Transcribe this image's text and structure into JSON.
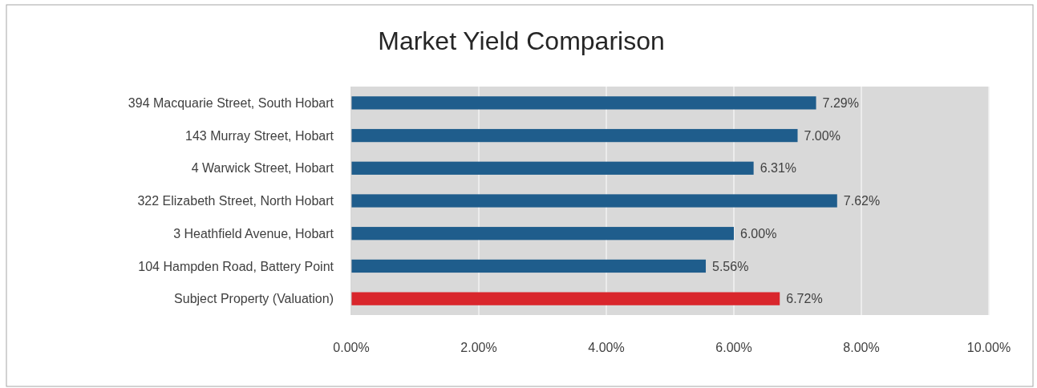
{
  "chart_data": {
    "type": "bar",
    "orientation": "horizontal",
    "title": "Market Yield Comparison",
    "categories": [
      "394 Macquarie Street, South Hobart",
      "143 Murray Street, Hobart",
      "4 Warwick Street, Hobart",
      "322 Elizabeth Street, North Hobart",
      "3 Heathfield Avenue, Hobart",
      "104 Hampden Road, Battery Point",
      "Subject Property (Valuation)"
    ],
    "values": [
      7.29,
      7.0,
      6.31,
      7.62,
      6.0,
      5.56,
      6.72
    ],
    "value_labels": [
      "7.29%",
      "7.00%",
      "6.31%",
      "7.62%",
      "6.00%",
      "5.56%",
      "6.72%"
    ],
    "colors": [
      "#1f5d8c",
      "#1f5d8c",
      "#1f5d8c",
      "#1f5d8c",
      "#1f5d8c",
      "#1f5d8c",
      "#d9262c"
    ],
    "xlim": [
      0,
      10
    ],
    "xticks": [
      {
        "value": 0,
        "label": "0.00%"
      },
      {
        "value": 2,
        "label": "2.00%"
      },
      {
        "value": 4,
        "label": "4.00%"
      },
      {
        "value": 6,
        "label": "6.00%"
      },
      {
        "value": 8,
        "label": "8.00%"
      },
      {
        "value": 10,
        "label": "10.00%"
      }
    ],
    "grid": "x"
  }
}
